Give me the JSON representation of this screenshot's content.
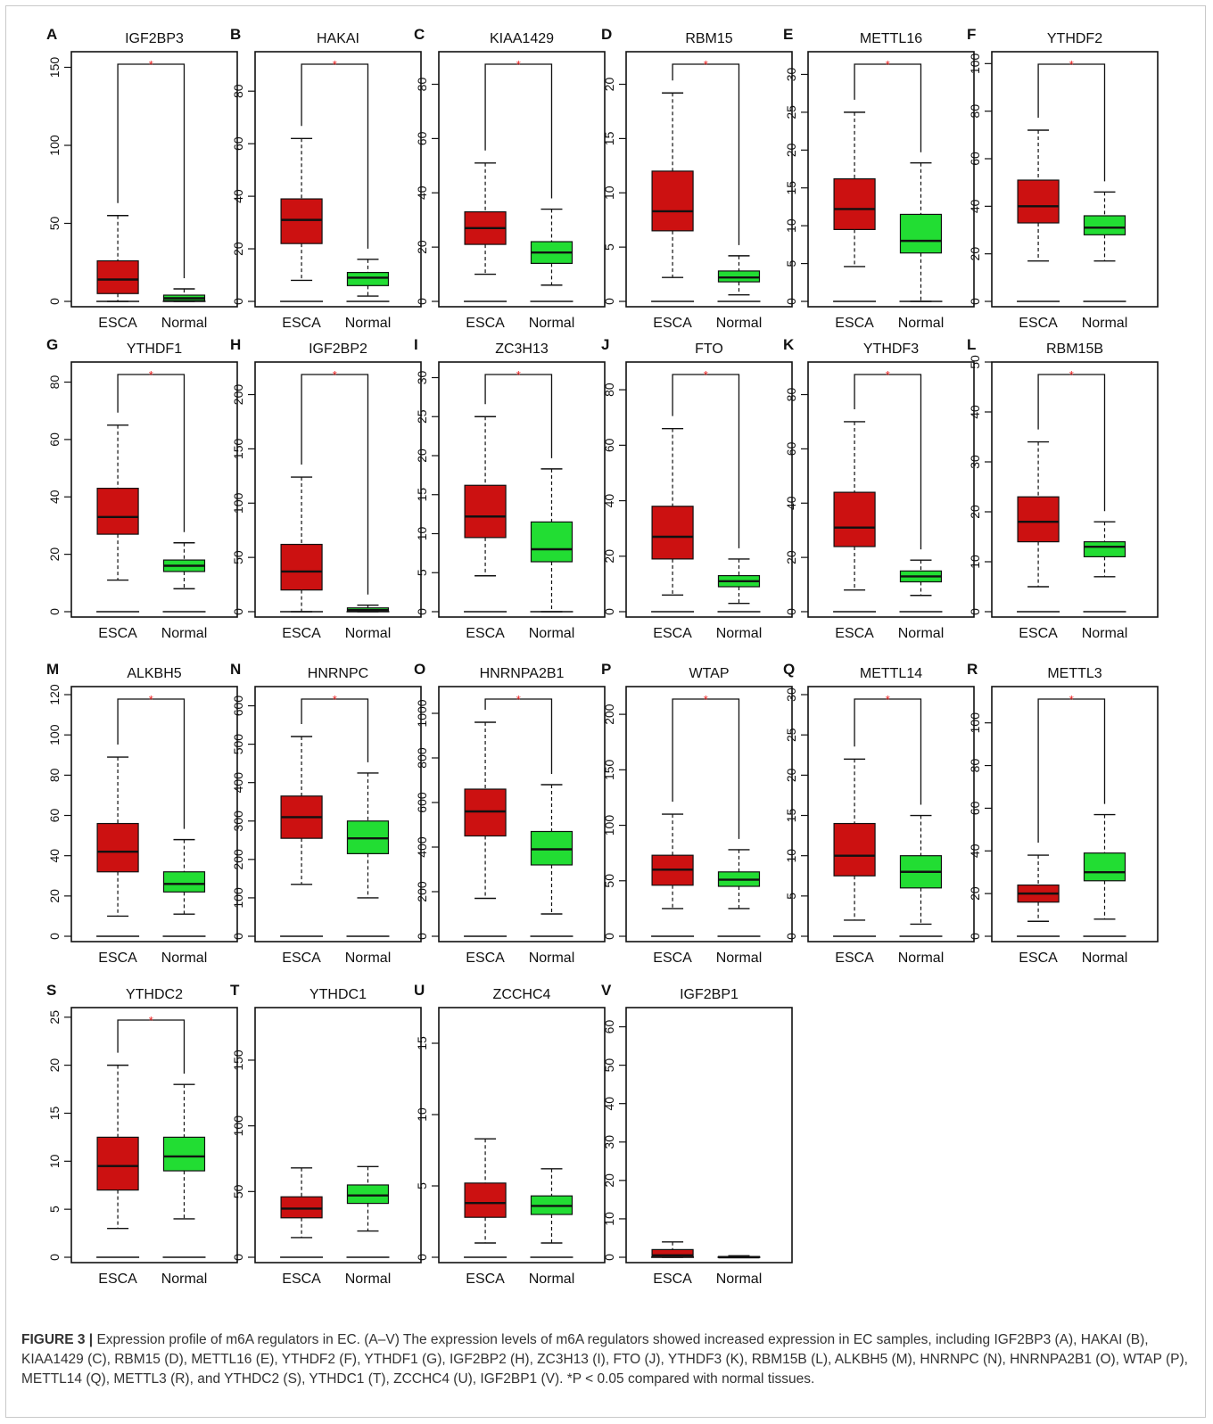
{
  "caption": {
    "label": "FIGURE 3 |",
    "text": "Expression profile of m6A regulators in EC. (A–V) The expression levels of m6A regulators showed increased expression in EC samples, including IGF2BP3 (A), HAKAI (B), KIAA1429 (C), RBM15 (D), METTL16 (E), YTHDF2 (F), YTHDF1 (G), IGF2BP2 (H), ZC3H13 (I), FTO (J), YTHDF3 (K), RBM15B (L), ALKBH5 (M), HNRNPC (N), HNRNPA2B1 (O), WTAP (P), METTL14 (Q), METTL3 (R), and YTHDC2 (S), YTHDC1 (T), ZCCHC4 (U), IGF2BP1 (V). *P < 0.05 compared with normal tissues."
  },
  "colors": {
    "esca": "#cc1111",
    "normal": "#22dd33",
    "significance": "#ee2222"
  },
  "chart_data": [
    {
      "type": "box",
      "letter": "A",
      "title": "IGF2BP3",
      "categories": [
        "ESCA",
        "Normal"
      ],
      "ylim": [
        0,
        160
      ],
      "yticks": [
        0,
        50,
        100,
        150
      ],
      "significant": true,
      "box_stats": [
        {
          "min": 0,
          "q1": 5,
          "median": 14,
          "q3": 26,
          "max": 55
        },
        {
          "min": 0,
          "q1": 0.5,
          "median": 2,
          "q3": 4,
          "max": 8
        }
      ]
    },
    {
      "type": "box",
      "letter": "B",
      "title": "HAKAI",
      "categories": [
        "ESCA",
        "Normal"
      ],
      "ylim": [
        0,
        95
      ],
      "yticks": [
        0,
        20,
        40,
        60,
        80
      ],
      "significant": true,
      "box_stats": [
        {
          "min": 8,
          "q1": 22,
          "median": 31,
          "q3": 39,
          "max": 62
        },
        {
          "min": 2,
          "q1": 6,
          "median": 9,
          "q3": 11,
          "max": 16
        }
      ]
    },
    {
      "type": "box",
      "letter": "C",
      "title": "KIAA1429",
      "categories": [
        "ESCA",
        "Normal"
      ],
      "ylim": [
        0,
        92
      ],
      "yticks": [
        0,
        20,
        40,
        60,
        80
      ],
      "significant": true,
      "box_stats": [
        {
          "min": 10,
          "q1": 21,
          "median": 27,
          "q3": 33,
          "max": 51
        },
        {
          "min": 6,
          "q1": 14,
          "median": 18,
          "q3": 22,
          "max": 34
        }
      ]
    },
    {
      "type": "box",
      "letter": "D",
      "title": "RBM15",
      "categories": [
        "ESCA",
        "Normal"
      ],
      "ylim": [
        0,
        23
      ],
      "yticks": [
        0,
        5,
        10,
        15,
        20
      ],
      "significant": true,
      "box_stats": [
        {
          "min": 2.2,
          "q1": 6.5,
          "median": 8.3,
          "q3": 12,
          "max": 19.2
        },
        {
          "min": 0.6,
          "q1": 1.8,
          "median": 2.2,
          "q3": 2.8,
          "max": 4.2
        }
      ]
    },
    {
      "type": "box",
      "letter": "E",
      "title": "METTL16",
      "categories": [
        "ESCA",
        "Normal"
      ],
      "ylim": [
        0,
        33
      ],
      "yticks": [
        0,
        5,
        10,
        15,
        20,
        25,
        30
      ],
      "significant": true,
      "box_stats": [
        {
          "min": 4.6,
          "q1": 9.5,
          "median": 12.2,
          "q3": 16.2,
          "max": 25
        },
        {
          "min": 0,
          "q1": 6.4,
          "median": 8,
          "q3": 11.5,
          "max": 18.3
        }
      ]
    },
    {
      "type": "box",
      "letter": "F",
      "title": "YTHDF2",
      "categories": [
        "ESCA",
        "Normal"
      ],
      "ylim": [
        0,
        105
      ],
      "yticks": [
        0,
        20,
        40,
        60,
        80,
        100
      ],
      "significant": true,
      "box_stats": [
        {
          "min": 17,
          "q1": 33,
          "median": 40,
          "q3": 51,
          "max": 72
        },
        {
          "min": 17,
          "q1": 28,
          "median": 31,
          "q3": 36,
          "max": 46
        }
      ]
    },
    {
      "type": "box",
      "letter": "G",
      "title": "YTHDF1",
      "categories": [
        "ESCA",
        "Normal"
      ],
      "ylim": [
        0,
        87
      ],
      "yticks": [
        0,
        20,
        40,
        60,
        80
      ],
      "significant": true,
      "box_stats": [
        {
          "min": 11,
          "q1": 27,
          "median": 33,
          "q3": 43,
          "max": 65
        },
        {
          "min": 8,
          "q1": 14,
          "median": 16,
          "q3": 18,
          "max": 24
        }
      ]
    },
    {
      "type": "box",
      "letter": "H",
      "title": "IGF2BP2",
      "categories": [
        "ESCA",
        "Normal"
      ],
      "ylim": [
        0,
        230
      ],
      "yticks": [
        0,
        50,
        100,
        150,
        200
      ],
      "significant": true,
      "box_stats": [
        {
          "min": 0,
          "q1": 20,
          "median": 37,
          "q3": 62,
          "max": 124
        },
        {
          "min": 0,
          "q1": 0.5,
          "median": 1.5,
          "q3": 3.5,
          "max": 6
        }
      ]
    },
    {
      "type": "box",
      "letter": "I",
      "title": "ZC3H13",
      "categories": [
        "ESCA",
        "Normal"
      ],
      "ylim": [
        0,
        32
      ],
      "yticks": [
        0,
        5,
        10,
        15,
        20,
        25,
        30
      ],
      "significant": true,
      "box_stats": [
        {
          "min": 4.6,
          "q1": 9.5,
          "median": 12.2,
          "q3": 16.2,
          "max": 25
        },
        {
          "min": 0,
          "q1": 6.4,
          "median": 8,
          "q3": 11.5,
          "max": 18.3
        }
      ]
    },
    {
      "type": "box",
      "letter": "J",
      "title": "FTO",
      "categories": [
        "ESCA",
        "Normal"
      ],
      "ylim": [
        0,
        90
      ],
      "yticks": [
        0,
        20,
        40,
        60,
        80
      ],
      "significant": true,
      "box_stats": [
        {
          "min": 6,
          "q1": 19,
          "median": 27,
          "q3": 38,
          "max": 66
        },
        {
          "min": 3,
          "q1": 9,
          "median": 11,
          "q3": 13,
          "max": 19
        }
      ]
    },
    {
      "type": "box",
      "letter": "K",
      "title": "YTHDF3",
      "categories": [
        "ESCA",
        "Normal"
      ],
      "ylim": [
        0,
        92
      ],
      "yticks": [
        0,
        20,
        40,
        60,
        80
      ],
      "significant": true,
      "box_stats": [
        {
          "min": 8,
          "q1": 24,
          "median": 31,
          "q3": 44,
          "max": 70
        },
        {
          "min": 6,
          "q1": 11,
          "median": 13,
          "q3": 15,
          "max": 19
        }
      ]
    },
    {
      "type": "box",
      "letter": "L",
      "title": "RBM15B",
      "categories": [
        "ESCA",
        "Normal"
      ],
      "ylim": [
        0,
        50
      ],
      "yticks": [
        0,
        10,
        20,
        30,
        40,
        50
      ],
      "significant": true,
      "box_stats": [
        {
          "min": 5,
          "q1": 14,
          "median": 18,
          "q3": 23,
          "max": 34
        },
        {
          "min": 7,
          "q1": 11,
          "median": 13,
          "q3": 14,
          "max": 18
        }
      ]
    },
    {
      "type": "box",
      "letter": "M",
      "title": "ALKBH5",
      "categories": [
        "ESCA",
        "Normal"
      ],
      "ylim": [
        0,
        124
      ],
      "yticks": [
        0,
        20,
        40,
        60,
        80,
        100,
        120
      ],
      "significant": true,
      "box_stats": [
        {
          "min": 10,
          "q1": 32,
          "median": 42,
          "q3": 56,
          "max": 89
        },
        {
          "min": 11,
          "q1": 22,
          "median": 26,
          "q3": 32,
          "max": 48
        }
      ]
    },
    {
      "type": "box",
      "letter": "N",
      "title": "HNRNPC",
      "categories": [
        "ESCA",
        "Normal"
      ],
      "ylim": [
        0,
        650
      ],
      "yticks": [
        0,
        100,
        200,
        300,
        400,
        500,
        600
      ],
      "significant": true,
      "box_stats": [
        {
          "min": 135,
          "q1": 255,
          "median": 310,
          "q3": 365,
          "max": 520
        },
        {
          "min": 100,
          "q1": 215,
          "median": 255,
          "q3": 300,
          "max": 425
        }
      ]
    },
    {
      "type": "box",
      "letter": "O",
      "title": "HNRNPA2B1",
      "categories": [
        "ESCA",
        "Normal"
      ],
      "ylim": [
        0,
        1120
      ],
      "yticks": [
        0,
        200,
        400,
        600,
        800,
        1000
      ],
      "significant": true,
      "box_stats": [
        {
          "min": 170,
          "q1": 450,
          "median": 560,
          "q3": 660,
          "max": 960
        },
        {
          "min": 100,
          "q1": 320,
          "median": 390,
          "q3": 470,
          "max": 680
        }
      ]
    },
    {
      "type": "box",
      "letter": "P",
      "title": "WTAP",
      "categories": [
        "ESCA",
        "Normal"
      ],
      "ylim": [
        0,
        225
      ],
      "yticks": [
        0,
        50,
        100,
        150,
        200
      ],
      "significant": true,
      "box_stats": [
        {
          "min": 25,
          "q1": 46,
          "median": 60,
          "q3": 73,
          "max": 110
        },
        {
          "min": 25,
          "q1": 45,
          "median": 51,
          "q3": 58,
          "max": 78
        }
      ]
    },
    {
      "type": "box",
      "letter": "Q",
      "title": "METTL14",
      "categories": [
        "ESCA",
        "Normal"
      ],
      "ylim": [
        0,
        31
      ],
      "yticks": [
        0,
        5,
        10,
        15,
        20,
        25,
        30
      ],
      "significant": true,
      "box_stats": [
        {
          "min": 2,
          "q1": 7.5,
          "median": 10,
          "q3": 14,
          "max": 22
        },
        {
          "min": 1.5,
          "q1": 6,
          "median": 8,
          "q3": 10,
          "max": 15
        }
      ]
    },
    {
      "type": "box",
      "letter": "R",
      "title": "METTL3",
      "categories": [
        "ESCA",
        "Normal"
      ],
      "ylim": [
        0,
        117
      ],
      "yticks": [
        0,
        20,
        40,
        60,
        80,
        100
      ],
      "significant": true,
      "box_stats": [
        {
          "min": 7,
          "q1": 16,
          "median": 20,
          "q3": 24,
          "max": 38
        },
        {
          "min": 8,
          "q1": 26,
          "median": 30,
          "q3": 39,
          "max": 57
        }
      ]
    },
    {
      "type": "box",
      "letter": "S",
      "title": "YTHDC2",
      "categories": [
        "ESCA",
        "Normal"
      ],
      "ylim": [
        0,
        26
      ],
      "yticks": [
        0,
        5,
        10,
        15,
        20,
        25
      ],
      "significant": true,
      "box_stats": [
        {
          "min": 3,
          "q1": 7,
          "median": 9.5,
          "q3": 12.5,
          "max": 20
        },
        {
          "min": 4,
          "q1": 9,
          "median": 10.5,
          "q3": 12.5,
          "max": 18
        }
      ]
    },
    {
      "type": "box",
      "letter": "T",
      "title": "YTHDC1",
      "categories": [
        "ESCA",
        "Normal"
      ],
      "ylim": [
        0,
        190
      ],
      "yticks": [
        0,
        50,
        100,
        150
      ],
      "significant": false,
      "box_stats": [
        {
          "min": 15,
          "q1": 30,
          "median": 37,
          "q3": 46,
          "max": 68
        },
        {
          "min": 20,
          "q1": 41,
          "median": 47,
          "q3": 55,
          "max": 69
        }
      ]
    },
    {
      "type": "box",
      "letter": "U",
      "title": "ZCCHC4",
      "categories": [
        "ESCA",
        "Normal"
      ],
      "ylim": [
        0,
        17.5
      ],
      "yticks": [
        0,
        5,
        10,
        15
      ],
      "significant": false,
      "box_stats": [
        {
          "min": 1,
          "q1": 2.8,
          "median": 3.8,
          "q3": 5.2,
          "max": 8.3
        },
        {
          "min": 1,
          "q1": 3,
          "median": 3.6,
          "q3": 4.3,
          "max": 6.2
        }
      ]
    },
    {
      "type": "box",
      "letter": "V",
      "title": "IGF2BP1",
      "categories": [
        "ESCA",
        "Normal"
      ],
      "ylim": [
        0,
        65
      ],
      "yticks": [
        0,
        10,
        20,
        30,
        40,
        50,
        60
      ],
      "significant": false,
      "box_stats": [
        {
          "min": 0,
          "q1": 0,
          "median": 0.5,
          "q3": 2,
          "max": 4
        },
        {
          "min": 0,
          "q1": 0,
          "median": 0,
          "q3": 0.2,
          "max": 0.4
        }
      ]
    }
  ]
}
